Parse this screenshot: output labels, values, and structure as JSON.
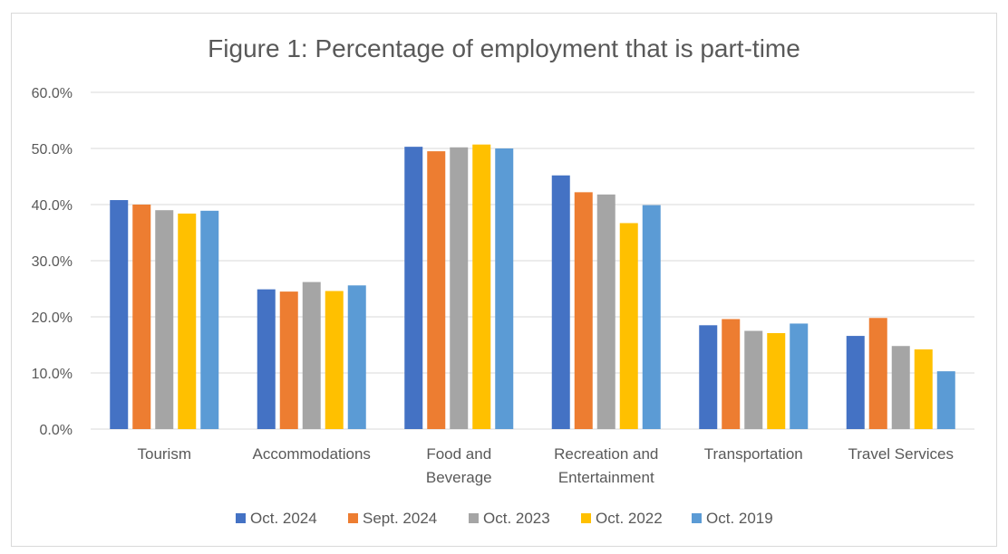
{
  "chart_data": {
    "type": "bar",
    "title": "Figure 1: Percentage of employment that is part-time",
    "xlabel": "",
    "ylabel": "",
    "ylim": [
      0,
      60
    ],
    "y_ticks": [
      "0.0%",
      "10.0%",
      "20.0%",
      "30.0%",
      "40.0%",
      "50.0%",
      "60.0%"
    ],
    "grid": true,
    "legend_position": "bottom",
    "categories": [
      [
        "Tourism"
      ],
      [
        "Accommodations"
      ],
      [
        "Food and",
        "Beverage"
      ],
      [
        "Recreation and",
        "Entertainment"
      ],
      [
        "Transportation"
      ],
      [
        "Travel Services"
      ]
    ],
    "series": [
      {
        "name": "Oct. 2024",
        "color": "#4472C4",
        "values": [
          40.8,
          24.9,
          50.3,
          45.2,
          18.5,
          16.6
        ]
      },
      {
        "name": "Sept. 2024",
        "color": "#ED7D31",
        "values": [
          40.0,
          24.5,
          49.5,
          42.2,
          19.6,
          19.8
        ]
      },
      {
        "name": "Oct. 2023",
        "color": "#A5A5A5",
        "values": [
          39.0,
          26.2,
          50.2,
          41.8,
          17.5,
          14.8
        ]
      },
      {
        "name": "Oct. 2022",
        "color": "#FFC000",
        "values": [
          38.4,
          24.6,
          50.7,
          36.7,
          17.1,
          14.2
        ]
      },
      {
        "name": "Oct. 2019",
        "color": "#5B9BD5",
        "values": [
          38.9,
          25.6,
          50.0,
          39.9,
          18.8,
          10.3
        ]
      }
    ]
  }
}
